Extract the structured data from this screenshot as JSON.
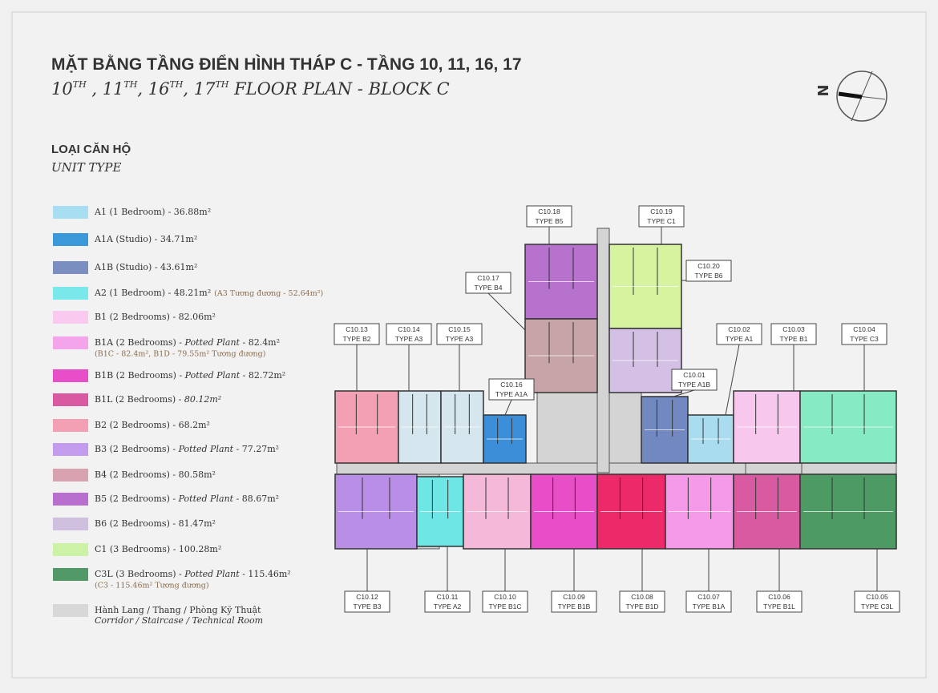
{
  "header": {
    "title_vi": "MẶT BẰNG TẦNG ĐIỂN HÌNH THÁP C - TẦNG 10, 11, 16, 17",
    "title_en": {
      "parts": [
        "10",
        "TH",
        " , 11",
        "TH",
        ", 16",
        "TH",
        ", 17",
        "TH",
        " FLOOR PLAN - BLOCK C"
      ]
    },
    "compass": "N"
  },
  "legend": {
    "title_vi": "LOẠI CĂN HỘ",
    "title_en": "UNIT TYPE",
    "items": [
      {
        "color": "#a8def2",
        "label": "A1 (1 Bedroom) - 36.88m²"
      },
      {
        "color": "#3a9ad9",
        "label": "A1A (Studio) - 34.71m²"
      },
      {
        "color": "#7a8fc0",
        "label": "A1B (Studio) - 43.61m²"
      },
      {
        "color": "#7ae7ea",
        "label": "A2 (1 Bedroom) - 48.21m²",
        "inline_note": "(A3 Tương đương - 52.64m²)"
      },
      {
        "color": "#f9c9f0",
        "label": "B1 (2 Bedrooms) - 82.06m²"
      },
      {
        "color": "#f3a4ea",
        "label": "B1A (2 Bedrooms) - ",
        "italic": "Potted Plant",
        "after": " - 82.4m²",
        "note": "(B1C - 82.4m², B1D - 79.55m² Tương đương)"
      },
      {
        "color": "#e84ec8",
        "label": "B1B (2 Bedrooms) - ",
        "italic": "Potted Plant",
        "after": " - 82.72m²"
      },
      {
        "color": "#d95aa1",
        "label": "B1L (2 Bedrooms) - ",
        "italic": "80.12m²"
      },
      {
        "color": "#f3a0b4",
        "label": "B2 (2 Bedrooms) - 68.2m²"
      },
      {
        "color": "#c49cee",
        "label": "B3 (2 Bedrooms) - ",
        "italic": "Potted Plant",
        "after": " - 77.27m²"
      },
      {
        "color": "#d8a2ae",
        "label": "B4 (2 Bedrooms) - 80.58m²"
      },
      {
        "color": "#b86fce",
        "label": "B5 (2 Bedrooms) - ",
        "italic": "Potted Plant",
        "after": " - 88.67m²"
      },
      {
        "color": "#d0c0e0",
        "label": "B6 (2 Bedrooms) - 81.47m²"
      },
      {
        "color": "#ccf2a6",
        "label": "C1 (3 Bedrooms) - 100.28m²"
      },
      {
        "color": "#519967",
        "label": "C3L (3 Bedrooms) - ",
        "italic": "Potted Plant",
        "after": " - 115.46m²",
        "note": "(C3 - 115.46m² Tương đương)"
      },
      {
        "color": "#d8d8d8",
        "label": "Hành Lang / Thang / Phòng Kỹ Thuật",
        "subtitle": "Corridor / Staircase / Technical Room"
      }
    ]
  },
  "units": [
    {
      "id": "C10.18",
      "type": "TYPE B5",
      "color": "#b672cc"
    },
    {
      "id": "C10.19",
      "type": "TYPE C1",
      "color": "#d6f4a0"
    },
    {
      "id": "C10.17",
      "type": "TYPE B4",
      "color": "#c6a4a8"
    },
    {
      "id": "C10.20",
      "type": "TYPE B6",
      "color": "#d4c0e4"
    },
    {
      "id": "C10.13",
      "type": "TYPE B2",
      "color": "#f3a0b4"
    },
    {
      "id": "C10.14",
      "type": "TYPE A3",
      "color": "#d6e6ee"
    },
    {
      "id": "C10.15",
      "type": "TYPE A3",
      "color": "#d6e6ee"
    },
    {
      "id": "C10.16",
      "type": "TYPE A1A",
      "color": "#3a8fd8"
    },
    {
      "id": "C10.01",
      "type": "TYPE A1B",
      "color": "#7288c0"
    },
    {
      "id": "C10.02",
      "type": "TYPE A1",
      "color": "#a9dcef"
    },
    {
      "id": "C10.03",
      "type": "TYPE B1",
      "color": "#f7c7ee"
    },
    {
      "id": "C10.04",
      "type": "TYPE C3",
      "color": "#86eac2"
    },
    {
      "id": "C10.12",
      "type": "TYPE B3",
      "color": "#b88ee6"
    },
    {
      "id": "C10.11",
      "type": "TYPE A2",
      "color": "#6ee6e6"
    },
    {
      "id": "C10.10",
      "type": "TYPE B1C",
      "color": "#f4b8d8"
    },
    {
      "id": "C10.09",
      "type": "TYPE B1B",
      "color": "#e84ec8"
    },
    {
      "id": "C10.08",
      "type": "TYPE B1D",
      "color": "#ec2a6a"
    },
    {
      "id": "C10.07",
      "type": "TYPE B1A",
      "color": "#f49ae8"
    },
    {
      "id": "C10.06",
      "type": "TYPE B1L",
      "color": "#d85aa0"
    },
    {
      "id": "C10.05",
      "type": "TYPE C3L",
      "color": "#4e9a64"
    }
  ]
}
